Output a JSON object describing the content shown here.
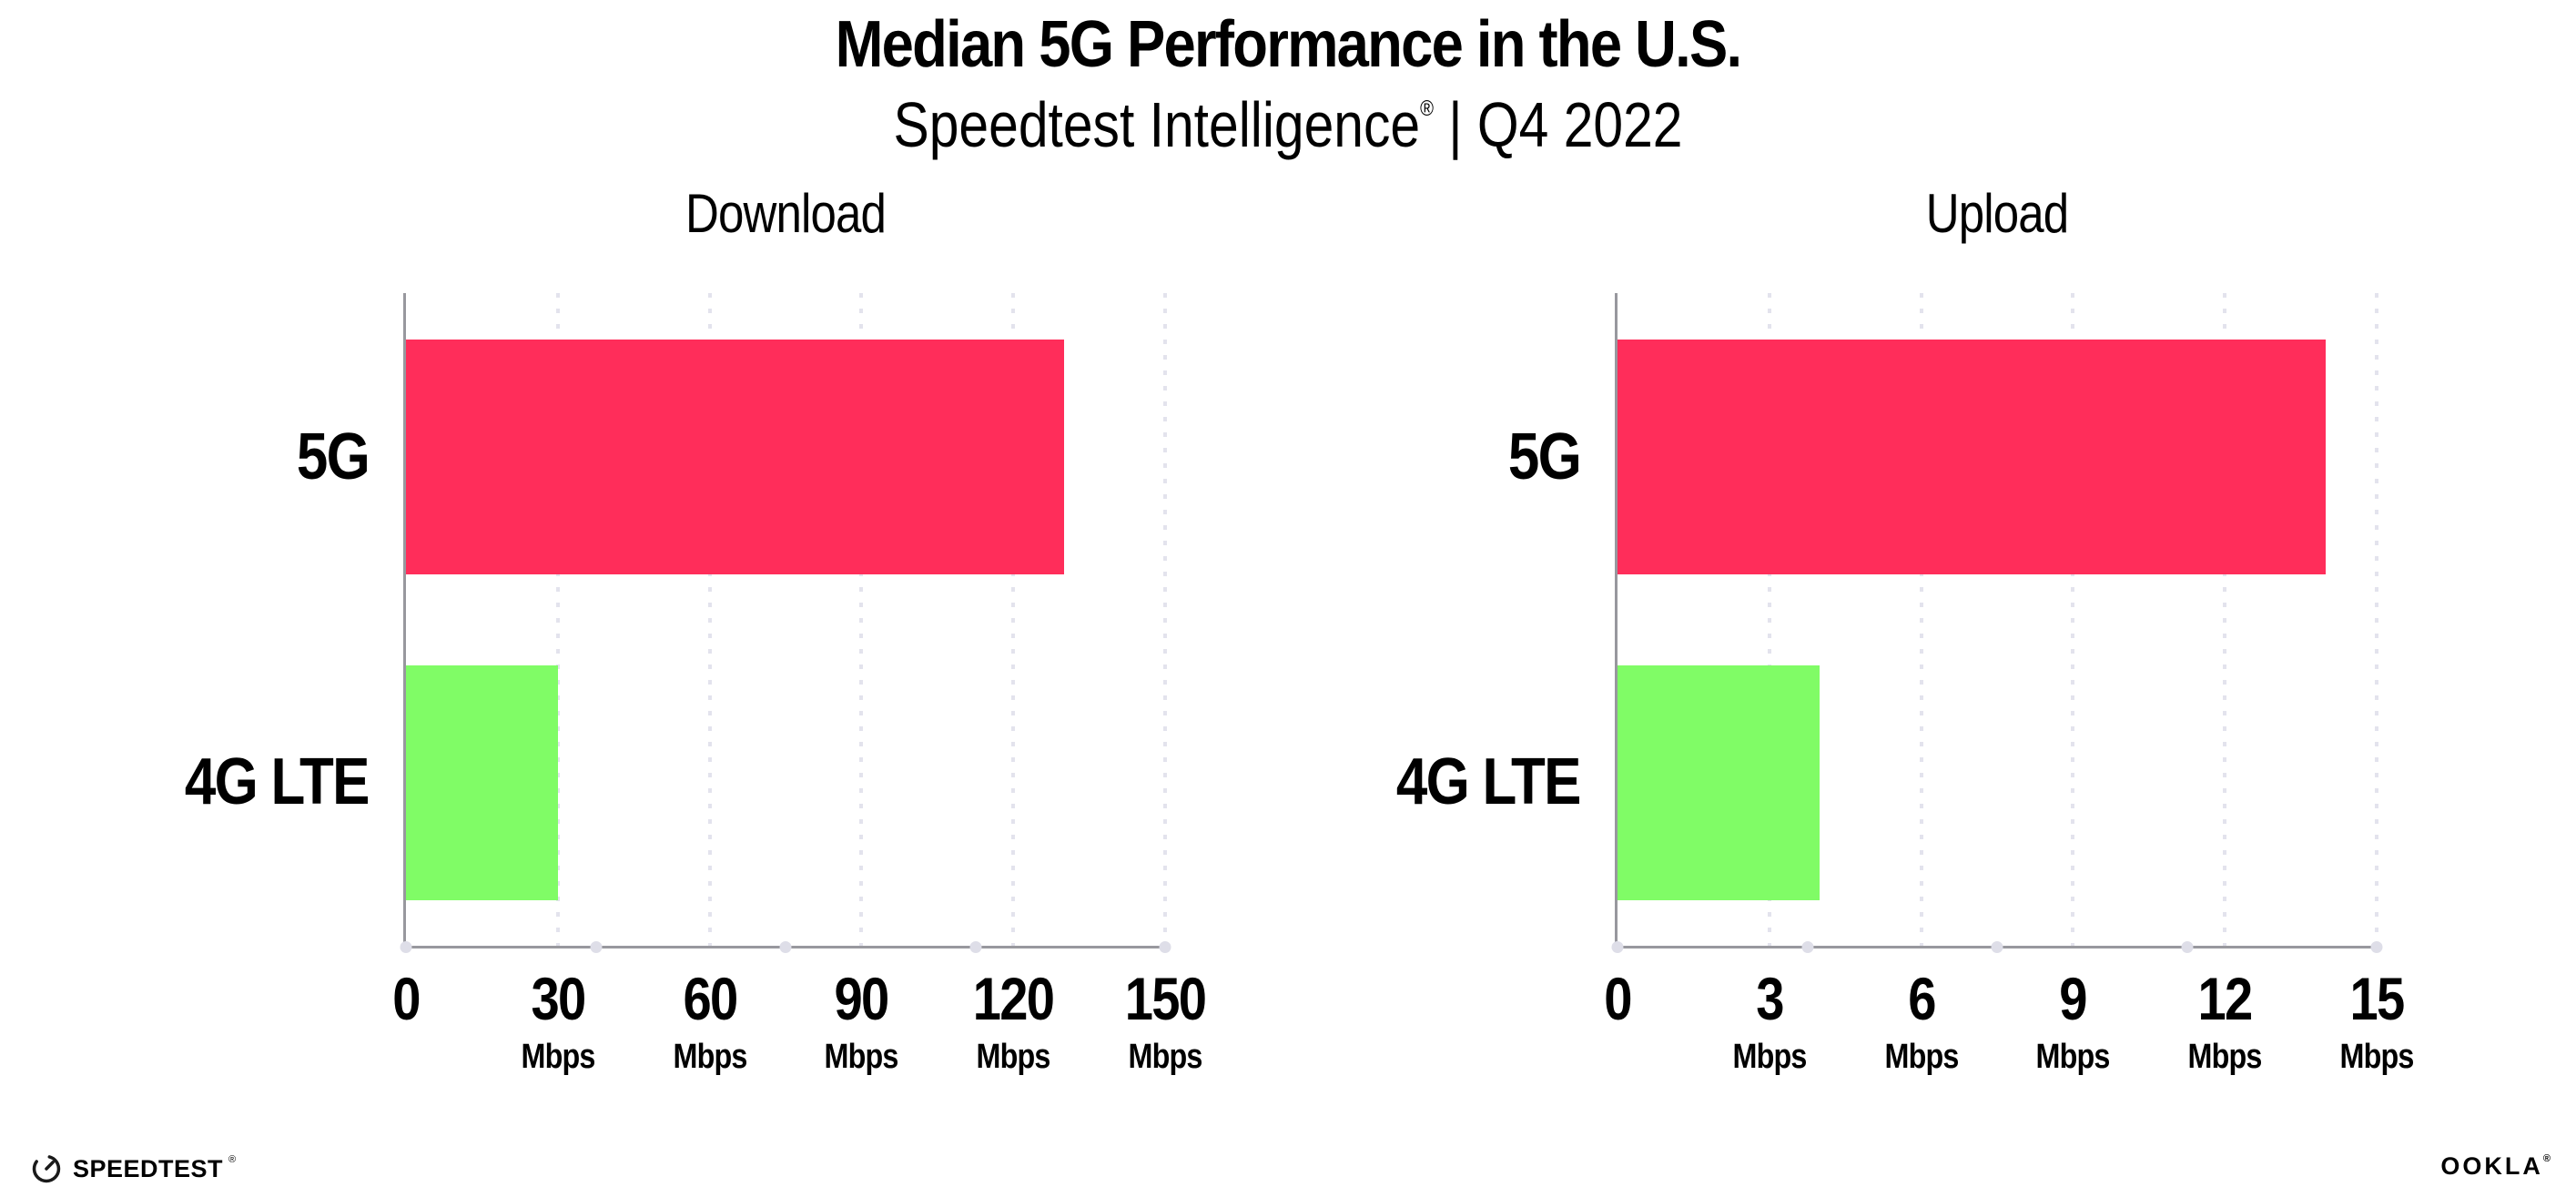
{
  "header": {
    "title": "Median 5G Performance in the U.S.",
    "subtitle": {
      "brand": "Speedtest Intelligence",
      "registered_mark": "®",
      "rest": " | Q4 2022"
    }
  },
  "colors": {
    "bar_5g": "#FF2D5A",
    "bar_4g_lte": "#80FC66",
    "gridline": "#E3E3ED",
    "axis_line": "#98989E",
    "axis_dot": "#DEDEE8",
    "text": "#000000",
    "background": "#FFFFFF"
  },
  "chart_data": [
    {
      "type": "bar",
      "orientation": "horizontal",
      "title": "Download",
      "categories": [
        "5G",
        "4G LTE"
      ],
      "values": [
        130,
        30
      ],
      "value_unit": "Mbps",
      "xlim": [
        0,
        150
      ],
      "xticks": [
        0,
        30,
        60,
        90,
        120,
        150
      ],
      "xtick_unit_label": "Mbps",
      "bar_colors": [
        "#FF2D5A",
        "#80FC66"
      ],
      "grid": "vertical-dotted",
      "legend": "none",
      "data_labels": false
    },
    {
      "type": "bar",
      "orientation": "horizontal",
      "title": "Upload",
      "categories": [
        "5G",
        "4G LTE"
      ],
      "values": [
        14,
        4
      ],
      "value_unit": "Mbps",
      "xlim": [
        0,
        15
      ],
      "xticks": [
        0,
        3,
        6,
        9,
        12,
        15
      ],
      "xtick_unit_label": "Mbps",
      "bar_colors": [
        "#FF2D5A",
        "#80FC66"
      ],
      "grid": "vertical-dotted",
      "legend": "none",
      "data_labels": false
    }
  ],
  "footer": {
    "speedtest_wordmark": "SPEEDTEST",
    "speedtest_registered_mark": "®",
    "ookla_wordmark": "OOKLA",
    "ookla_registered_mark": "®"
  }
}
